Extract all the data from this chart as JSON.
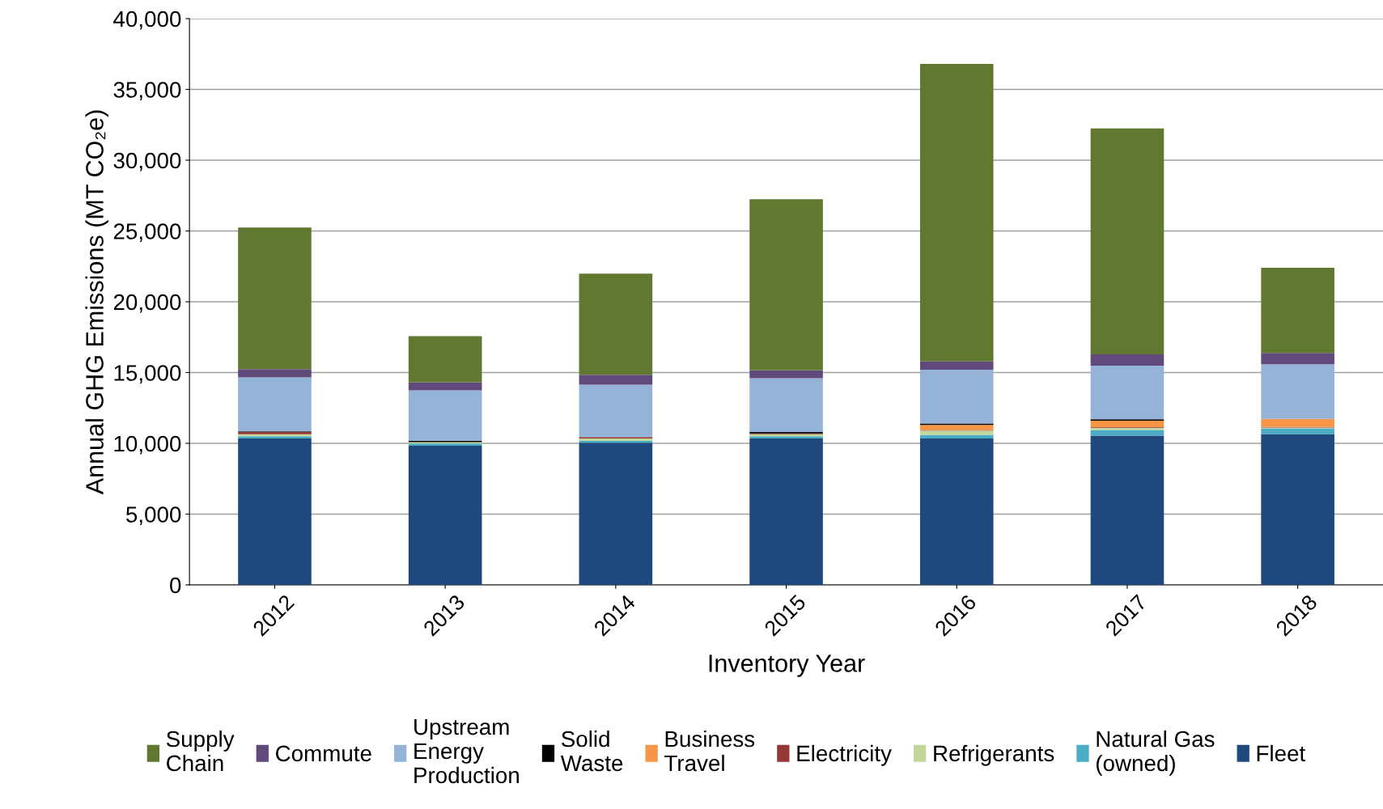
{
  "chart_data": {
    "type": "bar",
    "stacked": true,
    "xlabel": "Inventory Year",
    "ylabel": "Annual GHG Emissions (MT CO₂e)",
    "categories": [
      "2012",
      "2013",
      "2014",
      "2015",
      "2016",
      "2017",
      "2018"
    ],
    "ylim": [
      0,
      40000
    ],
    "yticks": [
      {
        "value": 0,
        "label": "0"
      },
      {
        "value": 5000,
        "label": "5,000"
      },
      {
        "value": 10000,
        "label": "10,000"
      },
      {
        "value": 15000,
        "label": "15,000"
      },
      {
        "value": 20000,
        "label": "20,000"
      },
      {
        "value": 25000,
        "label": "25,000"
      },
      {
        "value": 30000,
        "label": "30,000"
      },
      {
        "value": 35000,
        "label": "35,000"
      },
      {
        "value": 40000,
        "label": "40,000"
      }
    ],
    "grid": "y",
    "legend": "bottom",
    "series": [
      {
        "name": "Fleet",
        "color": "#1f497d",
        "values": [
          10350,
          9830,
          10040,
          10350,
          10350,
          10550,
          10660
        ]
      },
      {
        "name": "Natural Gas\n(owned)",
        "color": "#4bacc6",
        "values": [
          150,
          150,
          150,
          150,
          250,
          400,
          400
        ]
      },
      {
        "name": "Refrigerants",
        "color": "#c3d69b",
        "values": [
          150,
          100,
          150,
          150,
          300,
          150,
          50
        ]
      },
      {
        "name": "Electricity",
        "color": "#953735",
        "values": [
          150,
          0,
          100,
          50,
          50,
          50,
          50
        ]
      },
      {
        "name": "Business\nTravel",
        "color": "#f79646",
        "values": [
          0,
          0,
          0,
          0,
          350,
          450,
          570
        ]
      },
      {
        "name": "Solid\nWaste",
        "color": "#000000",
        "values": [
          50,
          100,
          0,
          100,
          100,
          100,
          0
        ]
      },
      {
        "name": "Upstream\nEnergy\nProduction",
        "color": "#95b3d7",
        "values": [
          3800,
          3560,
          3700,
          3800,
          3800,
          3790,
          3850
        ]
      },
      {
        "name": "Commute",
        "color": "#604a7b",
        "values": [
          600,
          580,
          700,
          570,
          580,
          790,
          810
        ]
      },
      {
        "name": "Supply\nChain",
        "color": "#607830",
        "values": [
          10000,
          3250,
          7150,
          12080,
          21020,
          15970,
          6010
        ]
      }
    ]
  }
}
